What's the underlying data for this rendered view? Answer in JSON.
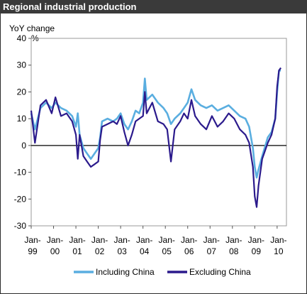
{
  "chart_data": {
    "type": "line",
    "title": "Regional industrial production",
    "ylabel": "YoY change",
    "yunit": "%",
    "ylim": [
      -30,
      40
    ],
    "yticks": [
      40,
      30,
      20,
      10,
      0,
      -10,
      -20,
      -30
    ],
    "xlim": [
      "1999-01",
      "2010-06"
    ],
    "xticks": [
      {
        "month": "Jan",
        "year": "99"
      },
      {
        "month": "Jan",
        "year": "00"
      },
      {
        "month": "Jan",
        "year": "01"
      },
      {
        "month": "Jan",
        "year": "02"
      },
      {
        "month": "Jan",
        "year": "03"
      },
      {
        "month": "Jan",
        "year": "04"
      },
      {
        "month": "Jan",
        "year": "05"
      },
      {
        "month": "Jan",
        "year": "06"
      },
      {
        "month": "Jan",
        "year": "07"
      },
      {
        "month": "Jan",
        "year": "08"
      },
      {
        "month": "Jan",
        "year": "09"
      },
      {
        "month": "Jan",
        "year": "10"
      }
    ],
    "grid": false,
    "legend_position": "bottom",
    "series": [
      {
        "name": "Including China",
        "color": "#5aaee0",
        "points": [
          [
            "1999-01",
            12
          ],
          [
            "1999-03",
            6
          ],
          [
            "1999-06",
            14
          ],
          [
            "1999-09",
            16
          ],
          [
            "1999-12",
            14
          ],
          [
            "2000-02",
            16
          ],
          [
            "2000-05",
            14
          ],
          [
            "2000-08",
            13
          ],
          [
            "2000-11",
            11
          ],
          [
            "2001-01",
            7
          ],
          [
            "2001-02",
            12
          ],
          [
            "2001-03",
            4
          ],
          [
            "2001-05",
            -1
          ],
          [
            "2001-07",
            -3
          ],
          [
            "2001-09",
            -5
          ],
          [
            "2001-11",
            -3
          ],
          [
            "2002-01",
            -1
          ],
          [
            "2002-02",
            3
          ],
          [
            "2002-03",
            9
          ],
          [
            "2002-06",
            10
          ],
          [
            "2002-09",
            9
          ],
          [
            "2002-11",
            10
          ],
          [
            "2003-01",
            12
          ],
          [
            "2003-03",
            8
          ],
          [
            "2003-05",
            6
          ],
          [
            "2003-07",
            9
          ],
          [
            "2003-09",
            13
          ],
          [
            "2003-11",
            12
          ],
          [
            "2004-01",
            16
          ],
          [
            "2004-02",
            25
          ],
          [
            "2004-03",
            17
          ],
          [
            "2004-06",
            19
          ],
          [
            "2004-09",
            16
          ],
          [
            "2004-12",
            14
          ],
          [
            "2005-02",
            12
          ],
          [
            "2005-04",
            8
          ],
          [
            "2005-06",
            10
          ],
          [
            "2005-09",
            12
          ],
          [
            "2005-11",
            14
          ],
          [
            "2006-01",
            16
          ],
          [
            "2006-03",
            21
          ],
          [
            "2006-05",
            17
          ],
          [
            "2006-08",
            15
          ],
          [
            "2006-11",
            14
          ],
          [
            "2007-02",
            15
          ],
          [
            "2007-05",
            13
          ],
          [
            "2007-08",
            14
          ],
          [
            "2007-11",
            15
          ],
          [
            "2008-02",
            13
          ],
          [
            "2008-05",
            11
          ],
          [
            "2008-08",
            10
          ],
          [
            "2008-10",
            7
          ],
          [
            "2008-12",
            -1
          ],
          [
            "2009-01",
            -8
          ],
          [
            "2009-02",
            -12
          ],
          [
            "2009-03",
            -9
          ],
          [
            "2009-05",
            -4
          ],
          [
            "2009-08",
            3
          ],
          [
            "2009-10",
            5
          ],
          [
            "2009-12",
            10
          ],
          [
            "2010-01",
            20
          ],
          [
            "2010-02",
            28
          ],
          [
            "2010-03",
            28
          ]
        ]
      },
      {
        "name": "Excluding China",
        "color": "#2b1a8c",
        "points": [
          [
            "1999-01",
            13
          ],
          [
            "1999-03",
            1
          ],
          [
            "1999-06",
            15
          ],
          [
            "1999-09",
            17
          ],
          [
            "1999-12",
            12
          ],
          [
            "2000-02",
            18
          ],
          [
            "2000-05",
            11
          ],
          [
            "2000-08",
            12
          ],
          [
            "2000-11",
            9
          ],
          [
            "2001-01",
            4
          ],
          [
            "2001-02",
            -5
          ],
          [
            "2001-03",
            4
          ],
          [
            "2001-05",
            -4
          ],
          [
            "2001-07",
            -6
          ],
          [
            "2001-09",
            -8
          ],
          [
            "2001-11",
            -7
          ],
          [
            "2002-01",
            -6
          ],
          [
            "2002-02",
            2
          ],
          [
            "2002-03",
            7
          ],
          [
            "2002-06",
            8
          ],
          [
            "2002-09",
            9
          ],
          [
            "2002-11",
            8
          ],
          [
            "2003-01",
            11
          ],
          [
            "2003-03",
            5
          ],
          [
            "2003-05",
            0
          ],
          [
            "2003-07",
            4
          ],
          [
            "2003-09",
            9
          ],
          [
            "2003-11",
            10
          ],
          [
            "2004-01",
            11
          ],
          [
            "2004-02",
            20
          ],
          [
            "2004-03",
            12
          ],
          [
            "2004-06",
            16
          ],
          [
            "2004-09",
            9
          ],
          [
            "2004-12",
            8
          ],
          [
            "2005-02",
            6
          ],
          [
            "2005-04",
            -6
          ],
          [
            "2005-06",
            6
          ],
          [
            "2005-09",
            9
          ],
          [
            "2005-11",
            12
          ],
          [
            "2006-01",
            10
          ],
          [
            "2006-03",
            17
          ],
          [
            "2006-05",
            11
          ],
          [
            "2006-08",
            8
          ],
          [
            "2006-11",
            6
          ],
          [
            "2007-02",
            11
          ],
          [
            "2007-05",
            7
          ],
          [
            "2007-08",
            9
          ],
          [
            "2007-11",
            12
          ],
          [
            "2008-02",
            10
          ],
          [
            "2008-05",
            6
          ],
          [
            "2008-08",
            4
          ],
          [
            "2008-10",
            1
          ],
          [
            "2008-12",
            -8
          ],
          [
            "2009-01",
            -19
          ],
          [
            "2009-02",
            -23
          ],
          [
            "2009-03",
            -15
          ],
          [
            "2009-05",
            -5
          ],
          [
            "2009-08",
            1
          ],
          [
            "2009-10",
            4
          ],
          [
            "2009-12",
            10
          ],
          [
            "2010-01",
            22
          ],
          [
            "2010-02",
            28
          ],
          [
            "2010-03",
            29
          ]
        ]
      }
    ]
  }
}
